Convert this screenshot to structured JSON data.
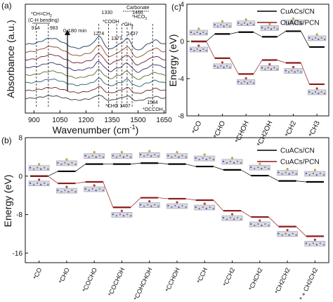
{
  "chart_data": [
    {
      "panel": "(a)",
      "type": "line",
      "xlabel": "Wavenumber (cm",
      "xlabel_sup": "-1",
      "xlabel_end": ")",
      "ylabel": "Absorbance (a.u.)",
      "xlim": [
        850,
        1660
      ],
      "xticks": [
        "900",
        "1050",
        "1200",
        "1350",
        "1500",
        "1650"
      ],
      "time_label": "0-180 min",
      "series_colors": [
        "#333333",
        "#6a2a1a",
        "#2a5a6a",
        "#5a6a2a",
        "#3a2a6a",
        "#6a1a3a",
        "#8a4a2a",
        "#1a3a5a"
      ],
      "peaks": [
        {
          "x": 914,
          "label": "914"
        },
        {
          "x": 983,
          "label": "983"
        },
        {
          "x": 1274,
          "label": "1274"
        },
        {
          "x": 1330,
          "label": "1330"
        },
        {
          "x": 1377,
          "label": "1377"
        },
        {
          "x": 1407,
          "label": "1407"
        },
        {
          "x": 1437,
          "label": "1437"
        },
        {
          "x": 1466,
          "label": "1466"
        },
        {
          "x": 1584,
          "label": "1584"
        }
      ],
      "annotations": {
        "ch_eq_ch2": "*CH=CH",
        "ch_eq_ch2_sub": "2",
        "ch_bending": "(C-H bending)",
        "cooh": "*COOH",
        "ch2": "*CH",
        "ch2_sub": "2",
        "carbonate": "Carbonate",
        "hco3": "*HCO",
        "hco3_sub": "3",
        "cho": "*CHO 1407",
        "occoh": "*OCCOH"
      }
    },
    {
      "panel": "(c)",
      "type": "line",
      "ylabel": "Energy (eV)",
      "ylim": [
        -8,
        4
      ],
      "yticks": [
        -8,
        -4,
        0,
        4
      ],
      "categories": [
        "*CO",
        "*CHO",
        "*CHOH",
        "*CH2OH",
        "*CH2",
        "*CH3"
      ],
      "series": [
        {
          "name": "CuACs/CN",
          "color": "#000000",
          "values": [
            0.0,
            0.8,
            1.0,
            0.5,
            1.1,
            -0.6
          ]
        },
        {
          "name": "CuACs/PCN",
          "color": "#8b1a1a",
          "values": [
            0.0,
            -1.8,
            -3.5,
            -2.0,
            -2.3,
            -4.6
          ]
        }
      ]
    },
    {
      "panel": "(b)",
      "type": "line",
      "ylabel": "Energy (eV)",
      "ylim": [
        -18,
        8
      ],
      "yticks": [
        -16,
        -8,
        0,
        8
      ],
      "categories": [
        "*CO",
        "*CHO",
        "*COCHO",
        "*COCHOH",
        "*COHCHOH",
        "*CCHOH",
        "*CCH",
        "*CCH2",
        "*CHCH2",
        "*CH2CH2",
        "* + CH2CH2"
      ],
      "series": [
        {
          "name": "CuACs/CN",
          "color": "#000000",
          "values": [
            0.0,
            1.0,
            2.5,
            2.5,
            2.7,
            2.5,
            2.0,
            1.3,
            0.1,
            -1.0,
            -1.2
          ]
        },
        {
          "name": "CuACs/PCN",
          "color": "#8b1a1a",
          "values": [
            0.0,
            -1.5,
            -1.2,
            -6.5,
            -4.5,
            -4.7,
            -5.0,
            -7.2,
            -8.5,
            -10.5,
            -12.5
          ]
        }
      ]
    }
  ]
}
